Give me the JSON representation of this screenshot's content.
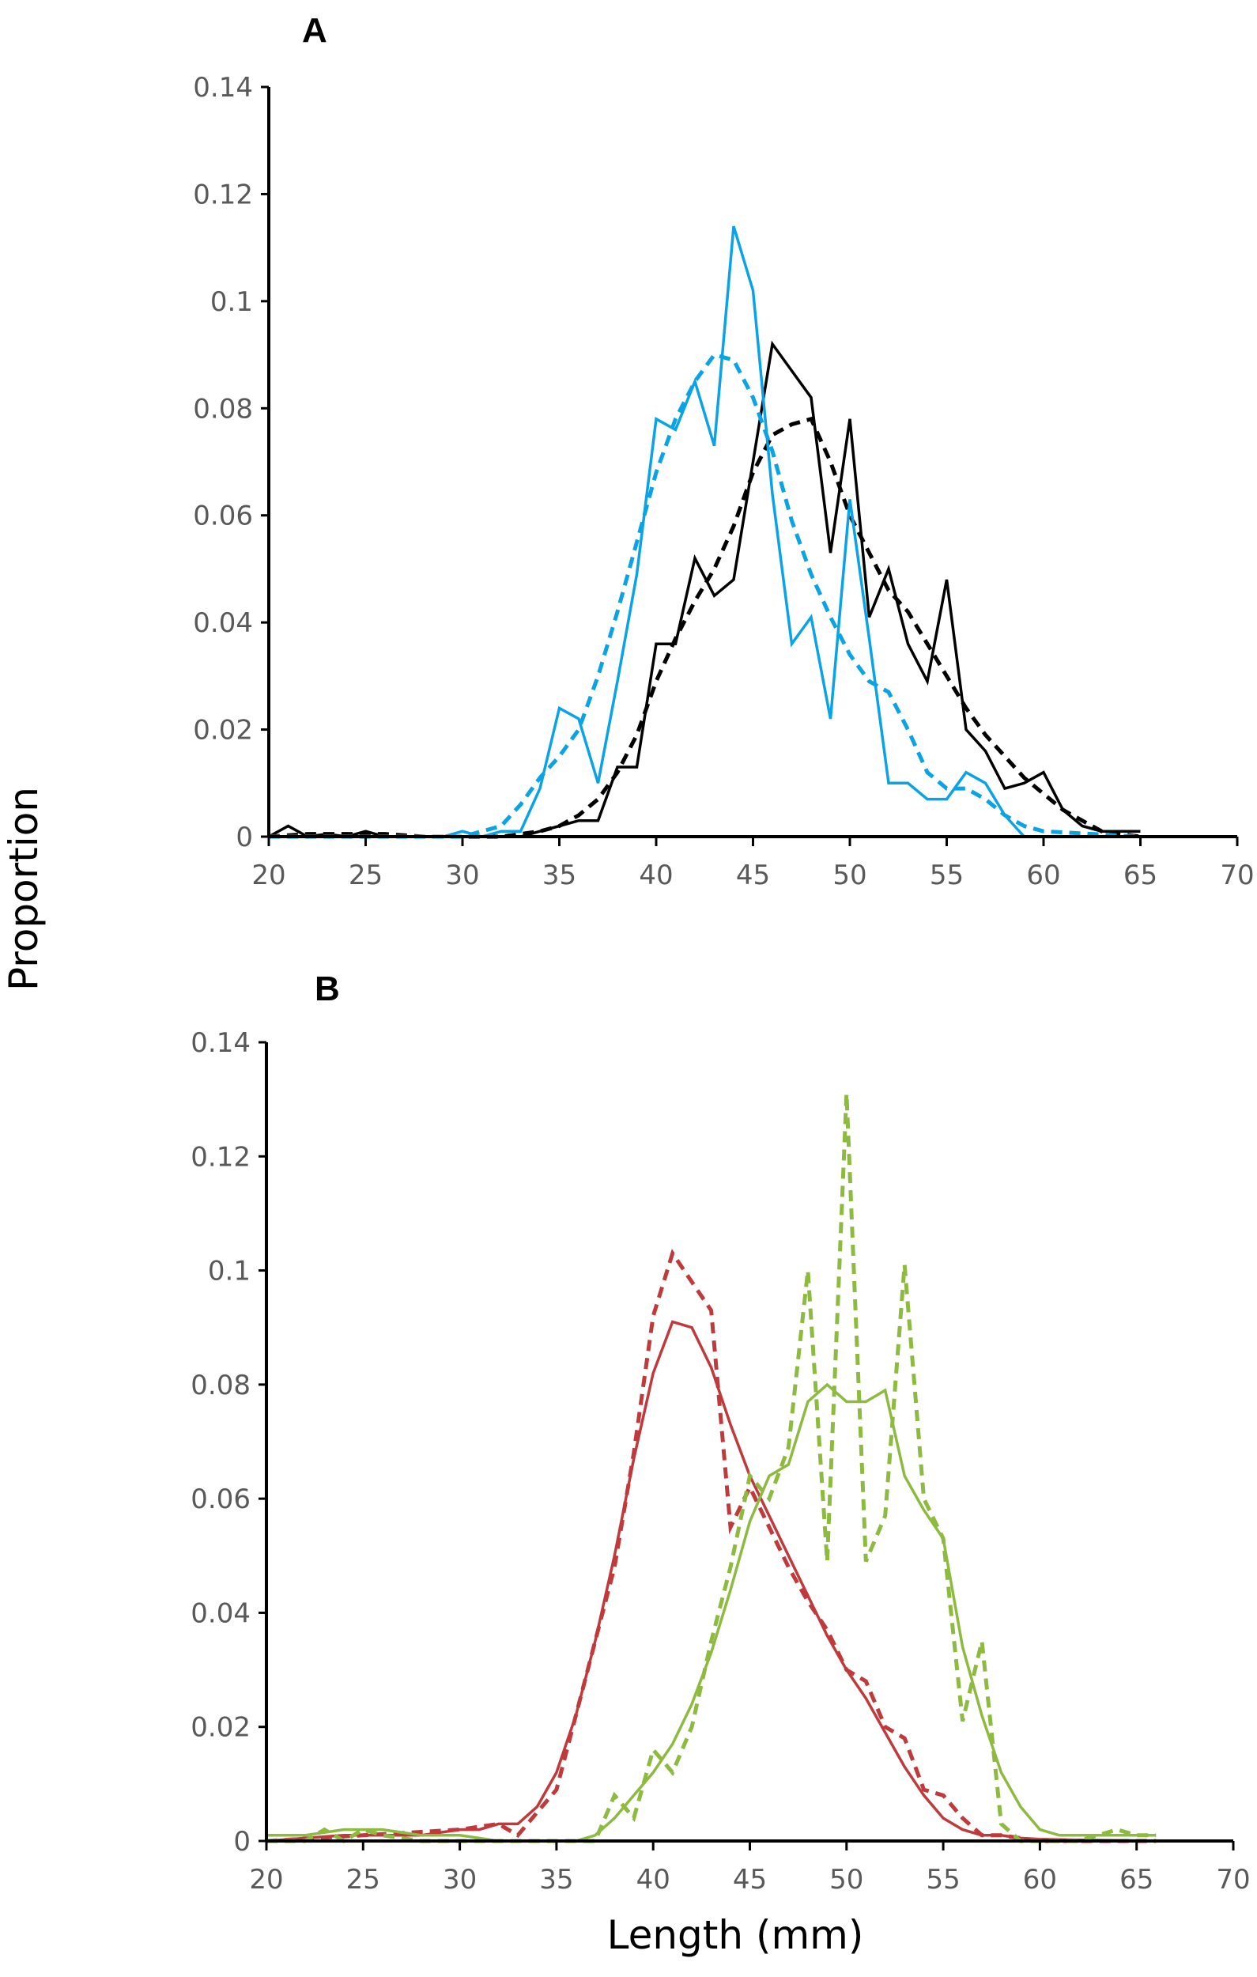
{
  "figure": {
    "ylabel": "Proportion",
    "xlabel": "Length (mm)",
    "colors": {
      "black": "#000000",
      "blue": "#0aa3e6",
      "red": "#c0393b",
      "green": "#8dbb3f",
      "tick_label": "#595959"
    }
  },
  "chart_data": [
    {
      "panel": "A",
      "type": "line",
      "title": "A",
      "xlabel": "Length (mm)",
      "ylabel": "Proportion",
      "xlim": [
        20,
        70
      ],
      "ylim": [
        0,
        0.14
      ],
      "xticks": [
        "20",
        "25",
        "30",
        "35",
        "40",
        "45",
        "50",
        "55",
        "60",
        "65",
        "70"
      ],
      "yticks": [
        "0",
        "0.02",
        "0.04",
        "0.06",
        "0.08",
        "0.1",
        "0.12",
        "0.14"
      ],
      "grid": false,
      "legend": null,
      "series": [
        {
          "name": "black-solid",
          "color": "#000000",
          "dash": "solid",
          "x": [
            20,
            21,
            22,
            23,
            24,
            25,
            26,
            27,
            28,
            29,
            30,
            31,
            32,
            33,
            34,
            35,
            36,
            37,
            38,
            39,
            40,
            41,
            42,
            43,
            44,
            45,
            46,
            47,
            48,
            49,
            50,
            51,
            52,
            53,
            54,
            55,
            56,
            57,
            58,
            59,
            60,
            61,
            62,
            63,
            64,
            65
          ],
          "y": [
            0,
            0.002,
            0,
            0.0005,
            0,
            0.001,
            0,
            0,
            0,
            0,
            0,
            0,
            0,
            0,
            0.001,
            0.002,
            0.003,
            0.003,
            0.013,
            0.013,
            0.036,
            0.036,
            0.052,
            0.045,
            0.048,
            0.07,
            0.092,
            0.087,
            0.082,
            0.053,
            0.078,
            0.041,
            0.05,
            0.036,
            0.029,
            0.048,
            0.02,
            0.016,
            0.009,
            0.01,
            0.012,
            0.005,
            0.002,
            0.001,
            0.001,
            0.001
          ]
        },
        {
          "name": "black-dashed",
          "color": "#000000",
          "dash": "dashed",
          "x": [
            20,
            22,
            24,
            26,
            28,
            30,
            32,
            34,
            35,
            36,
            37,
            38,
            39,
            40,
            41,
            42,
            43,
            44,
            45,
            46,
            47,
            48,
            49,
            50,
            51,
            52,
            53,
            54,
            55,
            56,
            57,
            58,
            59,
            60,
            61,
            62,
            63,
            64,
            65
          ],
          "y": [
            0,
            0.0005,
            0.0005,
            0.0005,
            0,
            0,
            0,
            0.001,
            0.002,
            0.004,
            0.007,
            0.012,
            0.019,
            0.029,
            0.037,
            0.044,
            0.05,
            0.058,
            0.068,
            0.075,
            0.077,
            0.078,
            0.07,
            0.06,
            0.053,
            0.046,
            0.042,
            0.036,
            0.03,
            0.024,
            0.019,
            0.015,
            0.011,
            0.008,
            0.005,
            0.003,
            0.001,
            0.0005,
            0
          ]
        },
        {
          "name": "blue-solid",
          "color": "#0aa3e6",
          "dash": "solid",
          "x": [
            20,
            25,
            29,
            30,
            31,
            32,
            33,
            34,
            35,
            36,
            37,
            38,
            39,
            40,
            41,
            42,
            43,
            44,
            45,
            46,
            47,
            48,
            49,
            50,
            51,
            52,
            53,
            54,
            55,
            56,
            57,
            58,
            59,
            60,
            65
          ],
          "y": [
            0,
            0,
            0,
            0.001,
            0,
            0.001,
            0.001,
            0.009,
            0.024,
            0.022,
            0.01,
            0.029,
            0.049,
            0.078,
            0.076,
            0.085,
            0.073,
            0.114,
            0.102,
            0.064,
            0.036,
            0.041,
            0.022,
            0.063,
            0.037,
            0.01,
            0.01,
            0.007,
            0.007,
            0.012,
            0.01,
            0.004,
            0,
            0,
            0
          ]
        },
        {
          "name": "blue-dashed",
          "color": "#0aa3e6",
          "dash": "dashed",
          "x": [
            20,
            25,
            28,
            30,
            31,
            32,
            33,
            34,
            35,
            36,
            37,
            38,
            39,
            40,
            41,
            42,
            43,
            44,
            45,
            46,
            47,
            48,
            49,
            50,
            51,
            52,
            53,
            54,
            55,
            56,
            57,
            58,
            59,
            60,
            65
          ],
          "y": [
            0,
            0,
            0,
            0,
            0.001,
            0.002,
            0.006,
            0.011,
            0.015,
            0.02,
            0.03,
            0.042,
            0.055,
            0.068,
            0.078,
            0.085,
            0.09,
            0.089,
            0.082,
            0.072,
            0.059,
            0.049,
            0.041,
            0.034,
            0.029,
            0.027,
            0.02,
            0.012,
            0.009,
            0.009,
            0.007,
            0.004,
            0.002,
            0.001,
            0
          ]
        }
      ]
    },
    {
      "panel": "B",
      "type": "line",
      "title": "B",
      "xlabel": "Length (mm)",
      "ylabel": "Proportion",
      "xlim": [
        20,
        70
      ],
      "ylim": [
        0,
        0.14
      ],
      "xticks": [
        "20",
        "25",
        "30",
        "35",
        "40",
        "45",
        "50",
        "55",
        "60",
        "65",
        "70"
      ],
      "yticks": [
        "0",
        "0.02",
        "0.04",
        "0.06",
        "0.08",
        "0.1",
        "0.12",
        "0.14"
      ],
      "grid": false,
      "legend": null,
      "series": [
        {
          "name": "red-solid",
          "color": "#c0393b",
          "dash": "solid",
          "x": [
            20,
            22,
            24,
            26,
            28,
            30,
            31,
            32,
            33,
            34,
            35,
            36,
            37,
            38,
            39,
            40,
            41,
            42,
            43,
            44,
            45,
            46,
            47,
            48,
            49,
            50,
            51,
            52,
            53,
            54,
            55,
            56,
            57,
            58,
            59,
            60,
            62,
            64,
            66
          ],
          "y": [
            0,
            0.0005,
            0.001,
            0.001,
            0.001,
            0.002,
            0.002,
            0.003,
            0.003,
            0.006,
            0.012,
            0.022,
            0.035,
            0.05,
            0.067,
            0.082,
            0.091,
            0.09,
            0.083,
            0.073,
            0.064,
            0.057,
            0.05,
            0.043,
            0.036,
            0.03,
            0.025,
            0.019,
            0.013,
            0.008,
            0.004,
            0.002,
            0.001,
            0.001,
            0.0005,
            0.0003,
            0.0002,
            0.0001,
            0
          ]
        },
        {
          "name": "red-dashed",
          "color": "#c0393b",
          "dash": "dashed",
          "x": [
            20,
            25,
            30,
            32,
            33,
            34,
            35,
            36,
            37,
            38,
            39,
            40,
            41,
            42,
            43,
            44,
            45,
            46,
            47,
            48,
            49,
            50,
            51,
            52,
            53,
            54,
            55,
            56,
            57,
            58,
            60,
            66
          ],
          "y": [
            0,
            0.001,
            0.002,
            0.003,
            0.001,
            0.005,
            0.009,
            0.022,
            0.035,
            0.048,
            0.068,
            0.092,
            0.103,
            0.098,
            0.093,
            0.055,
            0.062,
            0.055,
            0.048,
            0.042,
            0.037,
            0.03,
            0.028,
            0.02,
            0.018,
            0.009,
            0.008,
            0.004,
            0.001,
            0.001,
            0,
            0
          ]
        },
        {
          "name": "green-solid",
          "color": "#8dbb3f",
          "dash": "solid",
          "x": [
            20,
            22,
            24,
            26,
            28,
            30,
            32,
            34,
            35,
            36,
            37,
            38,
            39,
            40,
            41,
            42,
            43,
            44,
            45,
            46,
            47,
            48,
            49,
            50,
            51,
            52,
            53,
            54,
            55,
            56,
            57,
            58,
            59,
            60,
            61,
            62,
            63,
            64,
            65,
            66
          ],
          "y": [
            0.001,
            0.001,
            0.002,
            0.002,
            0.001,
            0.001,
            0,
            0,
            0,
            0,
            0.001,
            0.004,
            0.008,
            0.012,
            0.017,
            0.024,
            0.033,
            0.044,
            0.056,
            0.064,
            0.066,
            0.077,
            0.08,
            0.077,
            0.077,
            0.079,
            0.064,
            0.058,
            0.053,
            0.034,
            0.022,
            0.012,
            0.006,
            0.002,
            0.001,
            0.001,
            0.001,
            0.001,
            0.001,
            0.001
          ]
        },
        {
          "name": "green-dashed",
          "color": "#8dbb3f",
          "dash": "dashed",
          "x": [
            20,
            22,
            23,
            24,
            25,
            26,
            28,
            30,
            32,
            34,
            35,
            36,
            37,
            38,
            39,
            40,
            41,
            42,
            43,
            44,
            45,
            46,
            47,
            48,
            49,
            50,
            51,
            52,
            53,
            54,
            55,
            56,
            57,
            58,
            59,
            60,
            61,
            62,
            63,
            64,
            65,
            66
          ],
          "y": [
            0,
            0,
            0.002,
            0,
            0.002,
            0.001,
            0,
            0,
            0,
            0,
            0,
            0,
            0,
            0.008,
            0.004,
            0.016,
            0.012,
            0.02,
            0.035,
            0.048,
            0.064,
            0.06,
            0.069,
            0.1,
            0.049,
            0.131,
            0.049,
            0.057,
            0.101,
            0.06,
            0.053,
            0.021,
            0.035,
            0.003,
            0,
            0,
            0,
            0,
            0.001,
            0.002,
            0.001,
            0.001
          ]
        }
      ]
    }
  ]
}
